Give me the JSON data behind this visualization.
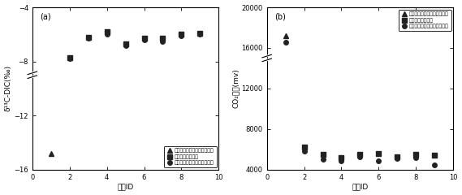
{
  "panel_a": {
    "label": "(a)",
    "xlabel": "样品ID",
    "ylabel": "δ¹³C-DIC(‰)",
    "xlim": [
      0,
      10
    ],
    "ylim": [
      -16,
      -4
    ],
    "yticks": [
      -16,
      -12,
      -8,
      -4
    ],
    "xticks": [
      0,
      2,
      4,
      6,
      8,
      10
    ],
    "series": {
      "triangle": {
        "x": [
          1
        ],
        "y": [
          -14.8
        ],
        "marker": "^",
        "label": "提前加入磷酸二氢锨饱和溶液"
      },
      "square": {
        "x": [
          2,
          3,
          4,
          5,
          6,
          7,
          8,
          9
        ],
        "y": [
          -7.7,
          -6.2,
          -5.8,
          -6.7,
          -6.3,
          -6.3,
          -6.0,
          -5.9
        ],
        "marker": "s",
        "label": "提前加入无水磷酸"
      },
      "circle": {
        "x": [
          2,
          3,
          4,
          5,
          6,
          7,
          8,
          9
        ],
        "y": [
          -7.8,
          -6.3,
          -6.0,
          -6.8,
          -6.4,
          -6.5,
          -6.1,
          -6.0
        ],
        "marker": "o",
        "label": "现场加入磷酸二氢锨饱和溶液"
      }
    }
  },
  "panel_b": {
    "label": "(b)",
    "xlabel": "样品ID",
    "ylabel": "CO₂浓度(mv)",
    "xlim": [
      0,
      10
    ],
    "ylim": [
      4000,
      20000
    ],
    "yticks": [
      4000,
      8000,
      12000,
      16000,
      20000
    ],
    "xticks": [
      0,
      2,
      4,
      6,
      8,
      10
    ],
    "series": {
      "triangle": {
        "x": [
          1
        ],
        "y": [
          17200
        ],
        "marker": "^",
        "label": "提前加入磷酸二氢锨饱和溶液"
      },
      "square": {
        "x": [
          2,
          3,
          4,
          5,
          6,
          7,
          8,
          9
        ],
        "y": [
          6200,
          5500,
          5200,
          5500,
          5600,
          5300,
          5500,
          5400
        ],
        "marker": "s",
        "label": "提前加入无水磷酸"
      },
      "circle": {
        "x": [
          1,
          2,
          3,
          4,
          5,
          6,
          7,
          8,
          9
        ],
        "y": [
          16600,
          5800,
          5000,
          4900,
          5300,
          4900,
          5100,
          5200,
          4500
        ],
        "marker": "o",
        "label": "现场加入磷酸二氢锨饱和溶液"
      }
    }
  },
  "marker_size": 4,
  "marker_color": "#222222",
  "font_size": 7,
  "label_fontsize": 6.5,
  "tick_fontsize": 6,
  "legend_fontsize": 4.5
}
